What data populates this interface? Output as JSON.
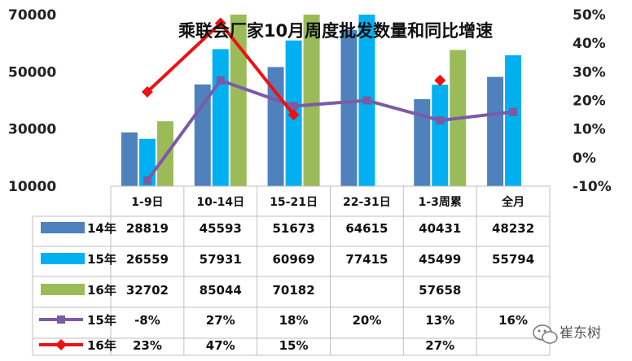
{
  "chart_data": {
    "type": "bar",
    "title": "乘联会厂家10月周度批发数量和同比增速",
    "categories": [
      "1-9日",
      "10-14日",
      "15-21日",
      "22-31日",
      "1-3周累",
      "全月"
    ],
    "y_left": {
      "ticks": [
        "70000",
        "50000",
        "30000",
        "10000"
      ],
      "range": [
        10000,
        70000
      ]
    },
    "y_right": {
      "ticks": [
        "50%",
        "40%",
        "30%",
        "20%",
        "10%",
        "0%",
        "-10%"
      ],
      "range": [
        -10,
        50
      ]
    },
    "bar_series": [
      {
        "name": "14年",
        "color": "#4f81bd",
        "values": [
          28819,
          45593,
          51673,
          64615,
          40431,
          48232
        ],
        "labels": [
          "28819",
          "45593",
          "51673",
          "64615",
          "40431",
          "48232"
        ]
      },
      {
        "name": "15年",
        "color": "#00b0f0",
        "values": [
          26559,
          57931,
          60969,
          77415,
          45499,
          55794
        ],
        "labels": [
          "26559",
          "57931",
          "60969",
          "77415",
          "45499",
          "55794"
        ]
      },
      {
        "name": "16年",
        "color": "#9bbb59",
        "values": [
          32702,
          85044,
          70182,
          null,
          57658,
          null
        ],
        "labels": [
          "32702",
          "85044",
          "70182",
          "",
          "57658",
          ""
        ]
      }
    ],
    "line_series": [
      {
        "name": "15年",
        "color": "#7b5aa6",
        "marker": "square",
        "values": [
          -8,
          27,
          18,
          20,
          13,
          16
        ],
        "labels": [
          "-8%",
          "27%",
          "18%",
          "20%",
          "13%",
          "16%"
        ]
      },
      {
        "name": "16年",
        "color": "#ee1111",
        "marker": "diamond",
        "values": [
          23,
          47,
          15,
          null,
          27,
          null
        ],
        "labels": [
          "23%",
          "47%",
          "15%",
          "",
          "27%",
          ""
        ]
      }
    ]
  },
  "watermark": "崔东树",
  "watermark_icon": "wechat-icon"
}
